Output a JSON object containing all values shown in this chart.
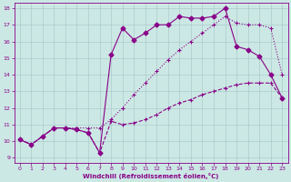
{
  "xlabel": "Windchill (Refroidissement éolien,°C)",
  "bg_color": "#cce8e4",
  "line_color": "#880088",
  "grid_color": "#aacccc",
  "xlim": [
    -0.5,
    23.5
  ],
  "ylim": [
    8.7,
    18.3
  ],
  "xticks": [
    0,
    1,
    2,
    3,
    4,
    5,
    6,
    7,
    8,
    9,
    10,
    11,
    12,
    13,
    14,
    15,
    16,
    17,
    18,
    19,
    20,
    21,
    22,
    23
  ],
  "yticks": [
    9,
    10,
    11,
    12,
    13,
    14,
    15,
    16,
    17,
    18
  ],
  "line_dotted_x": [
    0,
    1,
    2,
    3,
    4,
    5,
    6,
    7,
    8,
    9,
    10,
    11,
    12,
    13,
    14,
    15,
    16,
    17,
    18,
    19,
    20,
    21,
    22,
    23
  ],
  "line_dotted_y": [
    10.1,
    9.8,
    10.3,
    10.8,
    10.8,
    10.8,
    10.8,
    10.8,
    11.3,
    12.0,
    12.8,
    13.5,
    14.2,
    14.9,
    15.5,
    16.0,
    16.5,
    17.0,
    17.5,
    17.1,
    17.0,
    17.0,
    16.8,
    14.0
  ],
  "line_dashed_x": [
    0,
    1,
    2,
    3,
    4,
    5,
    6,
    7,
    8,
    9,
    10,
    11,
    12,
    13,
    14,
    15,
    16,
    17,
    18,
    19,
    20,
    21,
    22,
    23
  ],
  "line_dashed_y": [
    10.1,
    9.8,
    10.3,
    10.8,
    10.8,
    10.7,
    10.5,
    9.3,
    11.2,
    11.0,
    11.1,
    11.3,
    11.6,
    12.0,
    12.3,
    12.5,
    12.8,
    13.0,
    13.2,
    13.4,
    13.5,
    13.5,
    13.5,
    12.6
  ],
  "line_solid_x": [
    0,
    1,
    2,
    3,
    4,
    5,
    6,
    7,
    8,
    9,
    10,
    11,
    12,
    13,
    14,
    15,
    16,
    17,
    18,
    19,
    20,
    21,
    22,
    23
  ],
  "line_solid_y": [
    10.1,
    9.8,
    10.3,
    10.8,
    10.8,
    10.7,
    10.5,
    9.3,
    15.2,
    16.8,
    16.1,
    16.5,
    17.0,
    17.0,
    17.5,
    17.4,
    17.4,
    17.5,
    18.0,
    15.7,
    15.5,
    15.1,
    14.0,
    12.6
  ]
}
